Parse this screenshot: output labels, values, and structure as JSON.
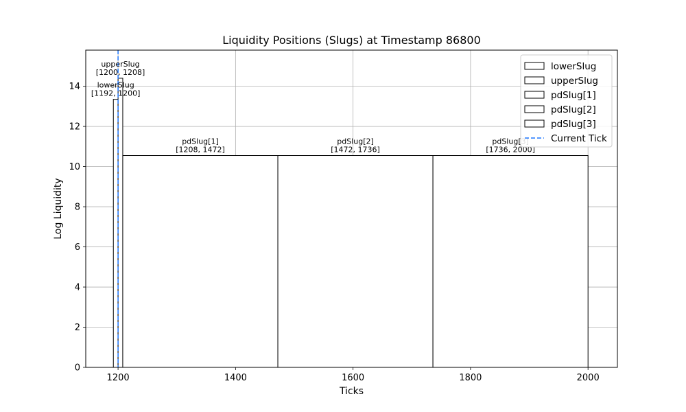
{
  "chart_data": {
    "type": "bar",
    "title": "Liquidity Positions (Slugs) at Timestamp 86800",
    "xlabel": "Ticks",
    "ylabel": "Log Liquidity",
    "xlim": [
      1145,
      2050
    ],
    "ylim": [
      0,
      15.8
    ],
    "x_ticks": [
      1200,
      1400,
      1600,
      1800,
      2000
    ],
    "y_ticks": [
      0,
      2,
      4,
      6,
      8,
      10,
      12,
      14
    ],
    "grid": true,
    "legend_position": "top-right",
    "bar_fill": "#ffffff",
    "bar_edge": "#000000",
    "series": [
      {
        "name": "lowerSlug",
        "x_start": 1192,
        "x_end": 1200,
        "value": 13.35,
        "label_line1": "lowerSlug",
        "label_line2": "[1192, 1200]"
      },
      {
        "name": "upperSlug",
        "x_start": 1200,
        "x_end": 1208,
        "value": 14.4,
        "label_line1": "upperSlug",
        "label_line2": "[1200, 1208]"
      },
      {
        "name": "pdSlug[1]",
        "x_start": 1208,
        "x_end": 1472,
        "value": 10.55,
        "label_line1": "pdSlug[1]",
        "label_line2": "[1208, 1472]"
      },
      {
        "name": "pdSlug[2]",
        "x_start": 1472,
        "x_end": 1736,
        "value": 10.55,
        "label_line1": "pdSlug[2]",
        "label_line2": "[1472, 1736]"
      },
      {
        "name": "pdSlug[3]",
        "x_start": 1736,
        "x_end": 2000,
        "value": 10.55,
        "label_line1": "pdSlug[3]",
        "label_line2": "[1736, 2000]"
      }
    ],
    "current_tick": {
      "name": "Current Tick",
      "x": 1200,
      "color": "#1f77ff"
    }
  }
}
